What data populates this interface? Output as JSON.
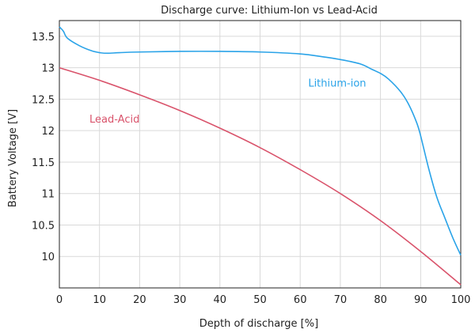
{
  "chart_data": {
    "type": "line",
    "title": "Discharge curve: Lithium-Ion vs Lead-Acid",
    "xlabel": "Depth of discharge [%]",
    "ylabel": "Battery Voltage [V]",
    "xlim": [
      0,
      100
    ],
    "ylim": [
      9.5,
      13.75
    ],
    "xticks": [
      "0",
      "10",
      "20",
      "30",
      "40",
      "50",
      "60",
      "70",
      "80",
      "90",
      "100"
    ],
    "yticks": [
      "10",
      "10.5",
      "11",
      "11.5",
      "12",
      "12.5",
      "13",
      "13.5"
    ],
    "grid": true,
    "legend": "none",
    "series": [
      {
        "name": "Lithium-ion",
        "color": "#2aa3e8",
        "label_at": [
          62,
          12.7
        ],
        "x": [
          0,
          1,
          2,
          5,
          8,
          10,
          12,
          15,
          20,
          30,
          40,
          50,
          60,
          65,
          70,
          75,
          78,
          80,
          82,
          85,
          87,
          89,
          90,
          92,
          94,
          96,
          98,
          100
        ],
        "y": [
          13.65,
          13.58,
          13.47,
          13.35,
          13.27,
          13.24,
          13.23,
          13.24,
          13.25,
          13.26,
          13.26,
          13.25,
          13.22,
          13.18,
          13.13,
          13.06,
          12.97,
          12.91,
          12.82,
          12.62,
          12.42,
          12.13,
          11.92,
          11.4,
          10.95,
          10.62,
          10.3,
          10.02
        ]
      },
      {
        "name": "Lead-Acid",
        "color": "#d9536b",
        "label_at": [
          7.5,
          12.13
        ],
        "x": [
          0,
          10,
          20,
          30,
          40,
          50,
          60,
          70,
          80,
          90,
          100
        ],
        "y": [
          13.0,
          12.8,
          12.57,
          12.32,
          12.04,
          11.73,
          11.38,
          11.0,
          10.57,
          10.08,
          9.55
        ]
      }
    ]
  }
}
